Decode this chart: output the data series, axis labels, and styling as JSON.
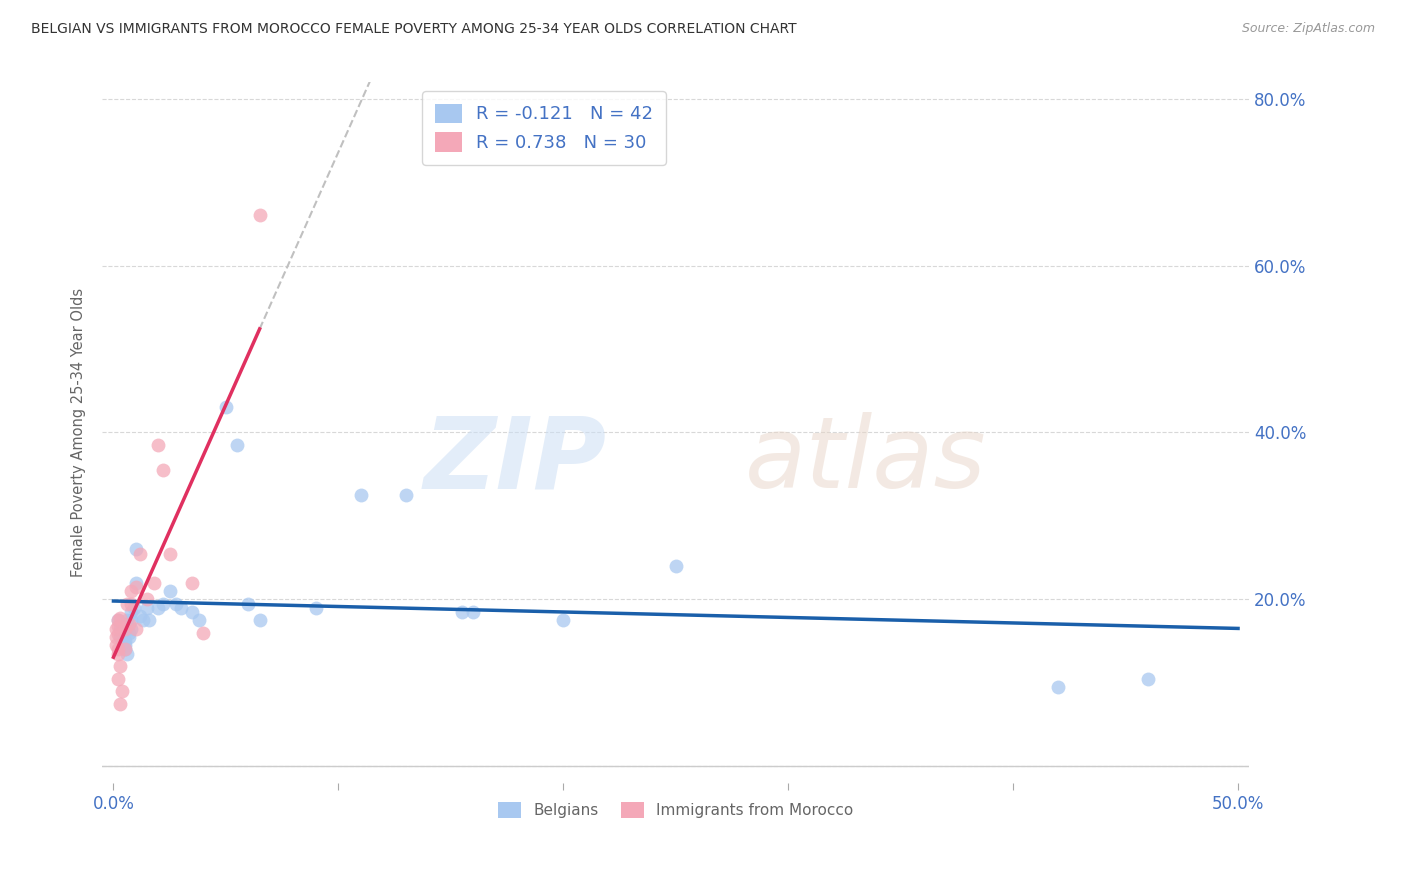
{
  "title": "BELGIAN VS IMMIGRANTS FROM MOROCCO FEMALE POVERTY AMONG 25-34 YEAR OLDS CORRELATION CHART",
  "source": "Source: ZipAtlas.com",
  "ylabel": "Female Poverty Among 25-34 Year Olds",
  "xlim": [
    -0.005,
    0.505
  ],
  "ylim": [
    -0.02,
    0.82
  ],
  "xticks": [
    0.0,
    0.1,
    0.2,
    0.3,
    0.4,
    0.5
  ],
  "xticklabels": [
    "0.0%",
    "",
    "",
    "",
    "",
    "50.0%"
  ],
  "yticks": [
    0.0,
    0.2,
    0.4,
    0.6,
    0.8
  ],
  "right_yticklabels": [
    "",
    "20.0%",
    "40.0%",
    "60.0%",
    "80.0%"
  ],
  "legend_R_entries": [
    {
      "label": "R = -0.121   N = 42",
      "color": "#a8c8f0"
    },
    {
      "label": "R = 0.738   N = 30",
      "color": "#f4a8b8"
    }
  ],
  "belgians_x": [
    0.002,
    0.003,
    0.003,
    0.004,
    0.005,
    0.005,
    0.005,
    0.006,
    0.006,
    0.006,
    0.007,
    0.007,
    0.008,
    0.008,
    0.008,
    0.009,
    0.01,
    0.01,
    0.012,
    0.013,
    0.015,
    0.016,
    0.02,
    0.022,
    0.025,
    0.028,
    0.03,
    0.035,
    0.038,
    0.05,
    0.055,
    0.06,
    0.065,
    0.09,
    0.11,
    0.13,
    0.155,
    0.16,
    0.2,
    0.25,
    0.42,
    0.46
  ],
  "belgians_y": [
    0.175,
    0.165,
    0.155,
    0.16,
    0.15,
    0.145,
    0.14,
    0.135,
    0.17,
    0.175,
    0.155,
    0.16,
    0.185,
    0.175,
    0.165,
    0.19,
    0.26,
    0.22,
    0.18,
    0.175,
    0.19,
    0.175,
    0.19,
    0.195,
    0.21,
    0.195,
    0.19,
    0.185,
    0.175,
    0.43,
    0.385,
    0.195,
    0.175,
    0.19,
    0.325,
    0.325,
    0.185,
    0.185,
    0.175,
    0.24,
    0.095,
    0.105
  ],
  "morocco_x": [
    0.001,
    0.001,
    0.001,
    0.002,
    0.002,
    0.002,
    0.002,
    0.002,
    0.002,
    0.003,
    0.003,
    0.003,
    0.004,
    0.005,
    0.005,
    0.006,
    0.007,
    0.008,
    0.008,
    0.01,
    0.01,
    0.012,
    0.015,
    0.018,
    0.02,
    0.022,
    0.025,
    0.035,
    0.04,
    0.065
  ],
  "morocco_y": [
    0.165,
    0.155,
    0.145,
    0.175,
    0.168,
    0.158,
    0.14,
    0.135,
    0.105,
    0.178,
    0.12,
    0.075,
    0.09,
    0.165,
    0.14,
    0.195,
    0.17,
    0.21,
    0.195,
    0.215,
    0.165,
    0.255,
    0.2,
    0.22,
    0.385,
    0.355,
    0.255,
    0.22,
    0.16,
    0.66
  ],
  "belgian_color": "#a8c8f0",
  "moroccan_color": "#f4a8b8",
  "belgian_line_color": "#1a5faa",
  "moroccan_line_color": "#e03060",
  "dashed_line_color": "#c0c0c0",
  "background_color": "#ffffff",
  "grid_color": "#d8d8d8",
  "tick_color": "#4472c4",
  "ylabel_color": "#666666",
  "title_color": "#333333",
  "source_color": "#999999"
}
